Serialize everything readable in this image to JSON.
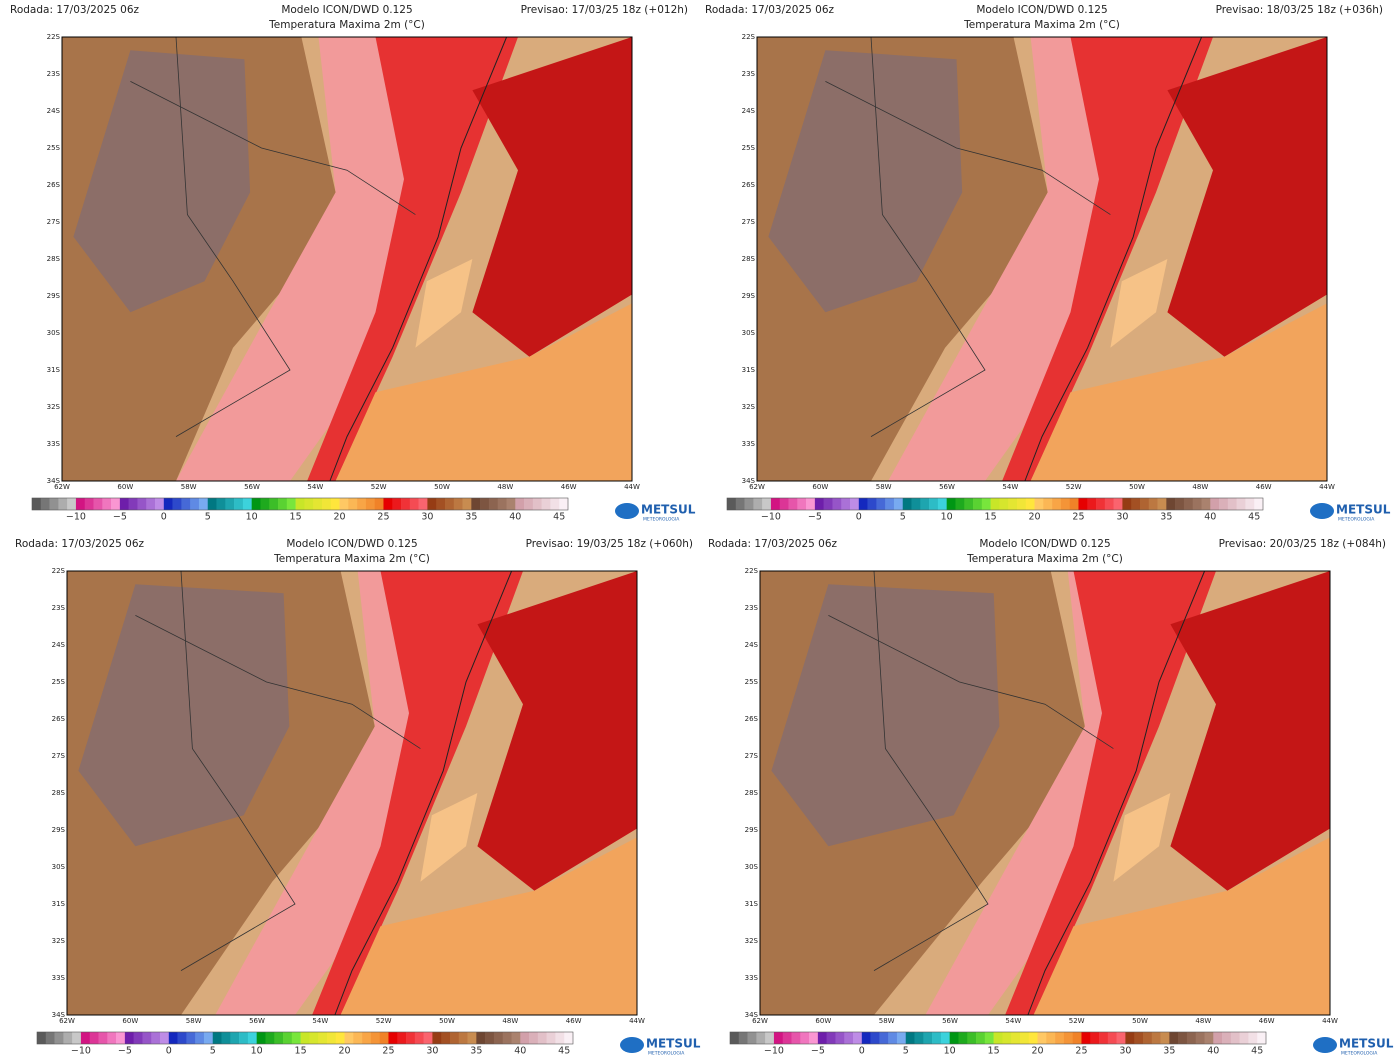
{
  "panels": [
    {
      "rodada": "Rodada: 17/03/2025 06z",
      "modelo": "Modelo ICON/DWD 0.125",
      "titulo": "Temperatura Maxima 2m (°C)",
      "previsao": "Previsao: 17/03/25 18z (+012h)"
    },
    {
      "rodada": "Rodada: 17/03/2025 06z",
      "modelo": "Modelo ICON/DWD 0.125",
      "titulo": "Temperatura Maxima 2m (°C)",
      "previsao": "Previsao: 18/03/25 18z (+036h)"
    },
    {
      "rodada": "Rodada: 17/03/2025 06z",
      "modelo": "Modelo ICON/DWD 0.125",
      "titulo": "Temperatura Maxima 2m (°C)",
      "previsao": "Previsao: 19/03/25 18z (+060h)"
    },
    {
      "rodada": "Rodada: 17/03/2025 06z",
      "modelo": "Modelo ICON/DWD 0.125",
      "titulo": "Temperatura Maxima 2m (°C)",
      "previsao": "Previsao: 20/03/25 18z (+084h)"
    }
  ],
  "lat_labels": [
    "22S",
    "23S",
    "24S",
    "25S",
    "26S",
    "27S",
    "28S",
    "29S",
    "30S",
    "31S",
    "32S",
    "33S",
    "34S"
  ],
  "lon_labels": [
    "62W",
    "60W",
    "58W",
    "56W",
    "54W",
    "52W",
    "50W",
    "48W",
    "46W",
    "44W"
  ],
  "colorbar_labels": [
    "−10",
    "−5",
    "0",
    "5",
    "10",
    "15",
    "20",
    "25",
    "30",
    "35",
    "40",
    "45"
  ],
  "logo": {
    "name": "METSUL",
    "sub": "METEOROLOGIA"
  }
}
